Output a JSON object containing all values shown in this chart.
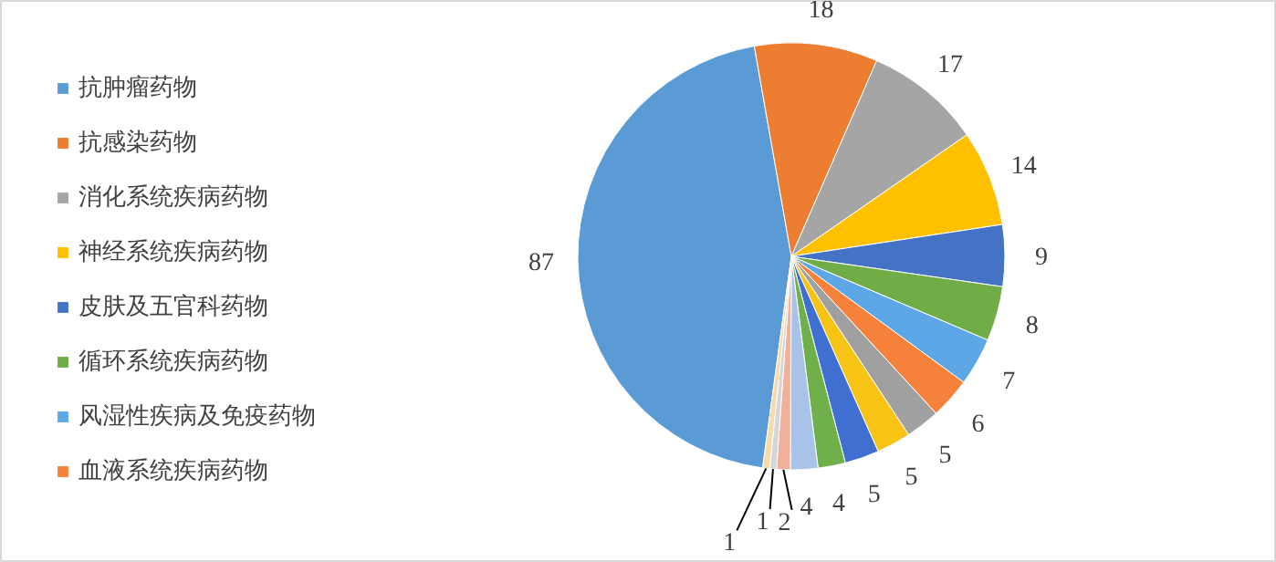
{
  "chart_data": {
    "type": "pie",
    "categories": [
      "抗肿瘤药物",
      "抗感染药物",
      "消化系统疾病药物",
      "神经系统疾病药物",
      "皮肤及五官科药物",
      "循环系统疾病药物",
      "风湿性疾病及免疫药物",
      "血液系统疾病药物",
      null,
      null,
      null,
      null,
      null,
      null,
      null,
      null
    ],
    "values": [
      87,
      18,
      17,
      14,
      9,
      8,
      7,
      6,
      5,
      5,
      5,
      4,
      4,
      2,
      1,
      1
    ],
    "colors": [
      "#5b9bd5",
      "#ed7d31",
      "#a5a5a5",
      "#ffc000",
      "#4472c4",
      "#70ad47",
      "#5ea7e6",
      "#f5813a",
      "#a0a0a0",
      "#f7c315",
      "#3f6fd0",
      "#6fb04a",
      "#a9c3e8",
      "#f1b09a",
      "#d6d6d6",
      "#f8d9a8"
    ],
    "data_labels": true,
    "legend": "left"
  }
}
